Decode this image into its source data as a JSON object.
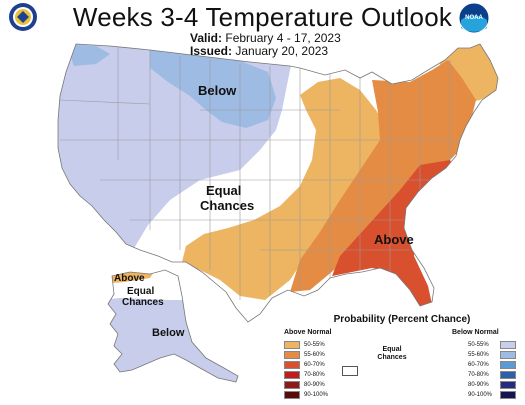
{
  "header": {
    "title": "Weeks 3-4 Temperature Outlook",
    "valid_label": "Valid:",
    "valid_value": "February 4 - 17, 2023",
    "issued_label": "Issued:",
    "issued_value": "January 20, 2023"
  },
  "logos": {
    "left": "department-of-commerce-seal",
    "right": "noaa-logo",
    "right_text": "NOAA"
  },
  "map_labels": {
    "below_north": "Below",
    "equal_line1": "Equal",
    "equal_line2": "Chances",
    "above_southeast": "Above",
    "ak_above": "Above",
    "ak_equal_line1": "Equal",
    "ak_equal_line2": "Chances",
    "ak_below": "Below"
  },
  "legend": {
    "title": "Probability (Percent Chance)",
    "above_header": "Above Normal",
    "below_header": "Below Normal",
    "equal_line1": "Equal",
    "equal_line2": "Chances",
    "above_items": [
      {
        "label": "50-55%",
        "color": "#EDB461"
      },
      {
        "label": "55-60%",
        "color": "#E58C44"
      },
      {
        "label": "60-70%",
        "color": "#D9502E"
      },
      {
        "label": "70-80%",
        "color": "#BE1E1E"
      },
      {
        "label": "80-90%",
        "color": "#8C1A1A"
      },
      {
        "label": "90-100%",
        "color": "#5A0A0A"
      }
    ],
    "below_items": [
      {
        "label": "50-55%",
        "color": "#C7CDEB"
      },
      {
        "label": "55-60%",
        "color": "#9EBBE3"
      },
      {
        "label": "60-70%",
        "color": "#5C9AD6"
      },
      {
        "label": "70-80%",
        "color": "#2E5FA8"
      },
      {
        "label": "80-90%",
        "color": "#252C7E"
      },
      {
        "label": "90-100%",
        "color": "#16154F"
      }
    ]
  }
}
